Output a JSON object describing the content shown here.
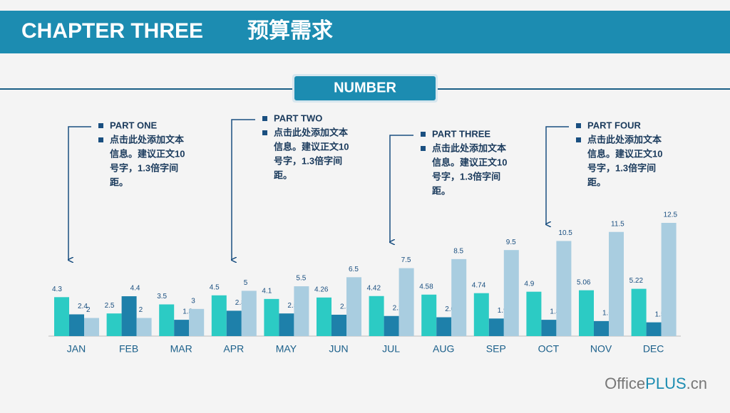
{
  "header": {
    "title": "CHAPTER THREE",
    "subtitle": "预算需求"
  },
  "badge": "NUMBER",
  "footer": {
    "brand_a": "Office",
    "brand_b": "PLUS",
    "brand_c": ".cn"
  },
  "chart_data": {
    "type": "bar",
    "categories": [
      "JAN",
      "FEB",
      "MAR",
      "APR",
      "MAY",
      "JUN",
      "JUL",
      "AUG",
      "SEP",
      "OCT",
      "NOV",
      "DEC"
    ],
    "series": [
      {
        "color": "#2ccbc4",
        "values": [
          4.3,
          2.5,
          3.5,
          4.5,
          4.1,
          4.26,
          4.42,
          4.58,
          4.74,
          4.9,
          5.06,
          5.22
        ]
      },
      {
        "color": "#1e80aa",
        "values": [
          2.4,
          4.4,
          1.8,
          2.8,
          2.5,
          2.36,
          2.22,
          2.08,
          1.94,
          1.8,
          1.66,
          1.52
        ]
      },
      {
        "color": "#a9cde0",
        "values": [
          2,
          2,
          3,
          5,
          5.5,
          6.5,
          7.5,
          8.5,
          9.5,
          10.5,
          11.5,
          12.5
        ]
      }
    ],
    "annotations": [
      {
        "title": "PART ONE",
        "lines": [
          "点击此处添加文本",
          "信息。建议正文10",
          "号字，1.3倍字间",
          "距。"
        ]
      },
      {
        "title": "PART TWO",
        "lines": [
          "点击此处添加文本",
          "信息。建议正文10",
          "号字，1.3倍字间",
          "距。"
        ]
      },
      {
        "title": "PART THREE",
        "lines": [
          "点击此处添加文本",
          "信息。建议正文10",
          "号字，1.3倍字间",
          "距。"
        ]
      },
      {
        "title": "PART FOUR",
        "lines": [
          "点击此处添加文本",
          "信息。建议正文10",
          "号字，1.3倍字间",
          "距。"
        ]
      }
    ]
  }
}
